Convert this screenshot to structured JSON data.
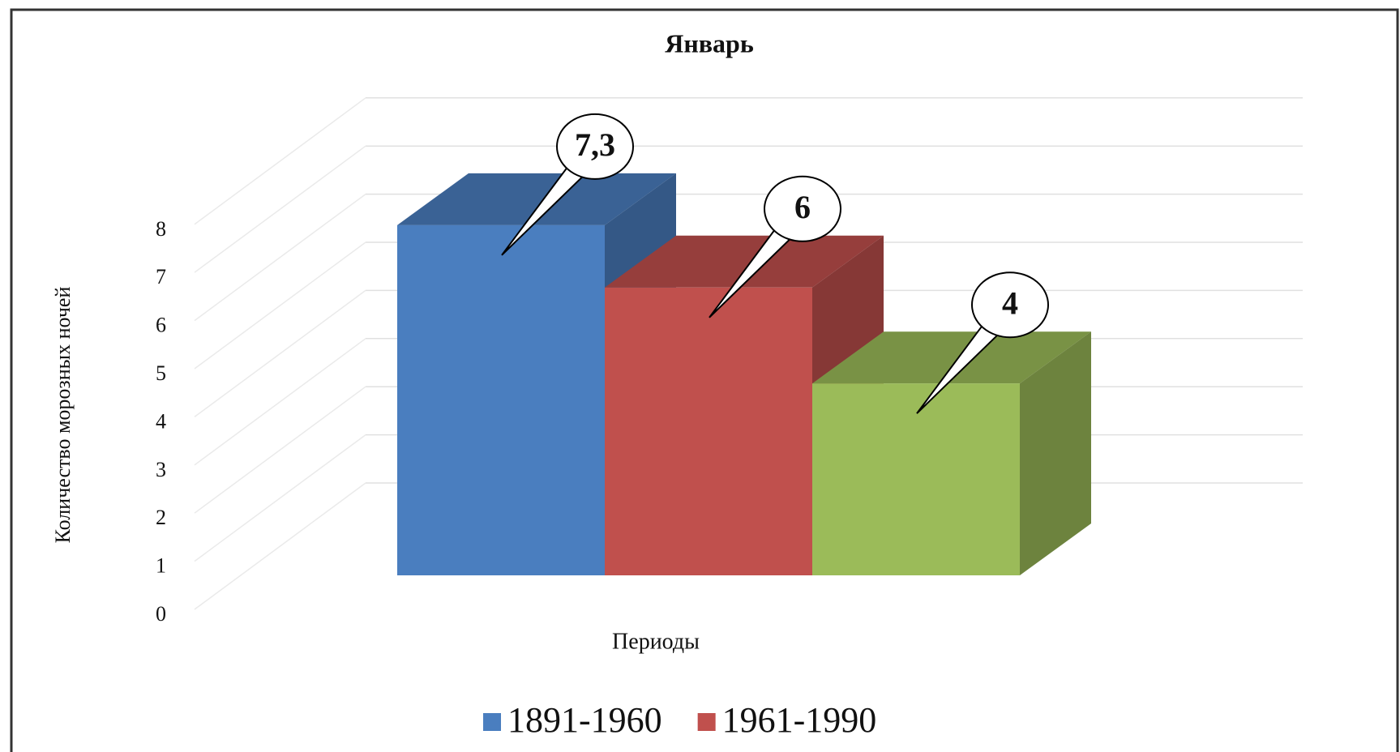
{
  "chart_data": {
    "type": "bar3d",
    "title": "Январь",
    "ylabel": "Количество морозных ночей",
    "xlabel": "Периоды",
    "series": [
      {
        "name": "1891-1960",
        "color": "#4a7ebf",
        "values": [
          7.3
        ],
        "value_labels": [
          "7,3"
        ]
      },
      {
        "name": "1961-1990",
        "color": "#c0504d",
        "values": [
          6
        ]
      },
      {
        "name": null,
        "color": "#9bbb59",
        "values": [
          4
        ]
      }
    ],
    "ylim": [
      0,
      8
    ],
    "yticks": [
      0,
      1,
      2,
      3,
      4,
      5,
      6,
      7,
      8
    ],
    "grid": true
  }
}
